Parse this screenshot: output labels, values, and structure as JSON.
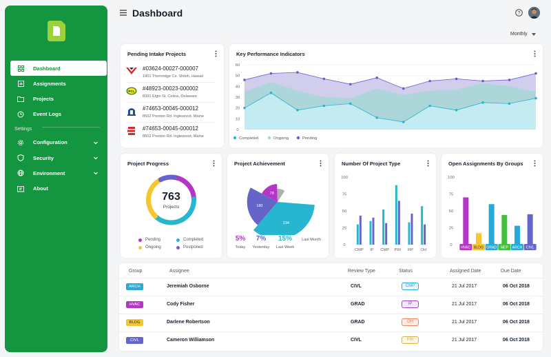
{
  "sidebar": {
    "items": [
      {
        "label": "Dashboard",
        "icon": "grid-icon"
      },
      {
        "label": "Assignments",
        "icon": "chart-icon"
      },
      {
        "label": "Projects",
        "icon": "folder-icon"
      },
      {
        "label": "Event Logs",
        "icon": "history-icon"
      }
    ],
    "settings_label": "Settings",
    "settings_items": [
      {
        "label": "Configuration",
        "icon": "gear-icon"
      },
      {
        "label": "Security",
        "icon": "shield-icon"
      },
      {
        "label": "Environment",
        "icon": "globe-icon"
      },
      {
        "label": "About",
        "icon": "info-icon"
      }
    ]
  },
  "header": {
    "title": "Dashboard",
    "period": "Monthly"
  },
  "intake": {
    "title": "Pending Intake Projects",
    "rows": [
      {
        "id": "#03624-00027-000007",
        "address": "1901 Thornridge Cir. Shiloh, Hawaii"
      },
      {
        "id": "#48923-00023-000002",
        "address": "8391 Elgin St. Celina, Delaware"
      },
      {
        "id": "#74653-00045-000012",
        "address": "8502 Preston Rd. Inglewood, Maine"
      },
      {
        "id": "#74653-00045-000012",
        "address": "8502 Preston Rd. Inglewood, Maine"
      }
    ]
  },
  "kpi": {
    "title": "Key Performance Indicators",
    "legend": [
      "Completed",
      "Ongoing",
      "Pending"
    ]
  },
  "progress": {
    "title": "Project Progress",
    "total": "763",
    "total_label": "Projects",
    "legend": [
      "Pending",
      "Completed",
      "Ongoing",
      "Postponed"
    ]
  },
  "achievement": {
    "title": "Project Achievement",
    "stats": [
      {
        "value": "5%",
        "label": "Today"
      },
      {
        "value": "7%",
        "label": "Yesterday"
      },
      {
        "value": "15%",
        "label": "Last Week"
      },
      {
        "value": "",
        "label": "Last Month"
      }
    ]
  },
  "chart_data": [
    {
      "type": "area",
      "title": "Key Performance Indicators",
      "ylim": [
        0,
        60
      ],
      "yticks": [
        0,
        10,
        20,
        30,
        40,
        50,
        60
      ],
      "x": [
        1,
        2,
        3,
        4,
        5,
        6,
        7,
        8,
        9,
        10,
        11,
        12
      ],
      "series": [
        {
          "name": "Pending",
          "values": [
            46,
            52,
            53,
            47,
            42,
            48,
            38,
            45,
            47,
            45,
            46,
            52
          ]
        },
        {
          "name": "Ongoing",
          "values": [
            35,
            44,
            36,
            30,
            29,
            38,
            32,
            36,
            37,
            43,
            40,
            35
          ]
        },
        {
          "name": "Completed",
          "values": [
            20,
            34,
            18,
            22,
            24,
            11,
            7,
            22,
            18,
            25,
            24,
            29
          ]
        }
      ],
      "legend": "bottom-left"
    },
    {
      "type": "pie",
      "title": "Project Progress",
      "slices": [
        {
          "name": "Pending",
          "value": 22
        },
        {
          "name": "Completed",
          "value": 38
        },
        {
          "name": "Ongoing",
          "value": 30
        },
        {
          "name": "Postponed",
          "value": 10
        }
      ]
    },
    {
      "type": "pie",
      "title": "Project Achievement",
      "slices": [
        {
          "label": "234",
          "value": 234
        },
        {
          "label": "180",
          "value": 180
        },
        {
          "label": "78",
          "value": 78
        },
        {
          "label": "",
          "value": 40
        }
      ]
    },
    {
      "type": "bar",
      "title": "Number Of Project Type",
      "ylim": [
        0,
        100
      ],
      "yticks": [
        0,
        25,
        50,
        75,
        100
      ],
      "categories": [
        "CMP",
        "IP",
        "CMP",
        "PRI",
        "RP",
        "OH"
      ],
      "series": [
        {
          "values": [
            30,
            35,
            52,
            88,
            33,
            57
          ]
        },
        {
          "values": [
            43,
            40,
            32,
            65,
            46,
            30
          ]
        }
      ]
    },
    {
      "type": "bar",
      "title": "Open Assignments By Groups",
      "ylim": [
        0,
        100
      ],
      "yticks": [
        0,
        25,
        50,
        75,
        100
      ],
      "categories": [
        "HVAC",
        "BLDG",
        "GRAD",
        "MEP",
        "ARCH",
        "CIVL"
      ],
      "values": [
        70,
        17,
        60,
        44,
        28,
        45
      ],
      "colors": [
        "#b536c6",
        "#f6c630",
        "#28a9d6",
        "#45bf3e",
        "#28a9d6",
        "#6565c9"
      ]
    }
  ],
  "types_title": "Number Of Project Type",
  "groups_title": "Open Assignments By Groups",
  "table": {
    "headers": [
      "Group",
      "Assignee",
      "Review Type",
      "Status",
      "Assigned Date",
      "Due Date"
    ],
    "rows": [
      {
        "group": "ARCH",
        "group_color": "#28a9d6",
        "assignee": "Jeremiah Osborne",
        "review": "CIVL",
        "status": "CMP",
        "status_color": "#28a9d6",
        "status_bg": "#e6f6fb",
        "assigned": "21 Jul 2017",
        "due": "06 Oct 2018"
      },
      {
        "group": "HVAC",
        "group_color": "#b536c6",
        "assignee": "Cody Fisher",
        "review": "GRAD",
        "status": "IP",
        "status_color": "#9a47c6",
        "status_bg": "#f3e7fa",
        "assigned": "21 Jul 2017",
        "due": "06 Oct 2018"
      },
      {
        "group": "BLDG",
        "group_color": "#f6c630",
        "assignee": "Darlene Robertson",
        "review": "GRAD",
        "status": "OH",
        "status_color": "#ef8560",
        "status_bg": "#fdeae2",
        "assigned": "21 Jul 2017",
        "due": "06 Oct 2018"
      },
      {
        "group": "CIVL",
        "group_color": "#6565c9",
        "assignee": "Cameron Williamson",
        "review": "CIVL",
        "status": "PRI",
        "status_color": "#e0b13d",
        "status_bg": "#fdf6e2",
        "assigned": "21 Jul 2017",
        "due": "06 Oct 2018"
      }
    ]
  }
}
